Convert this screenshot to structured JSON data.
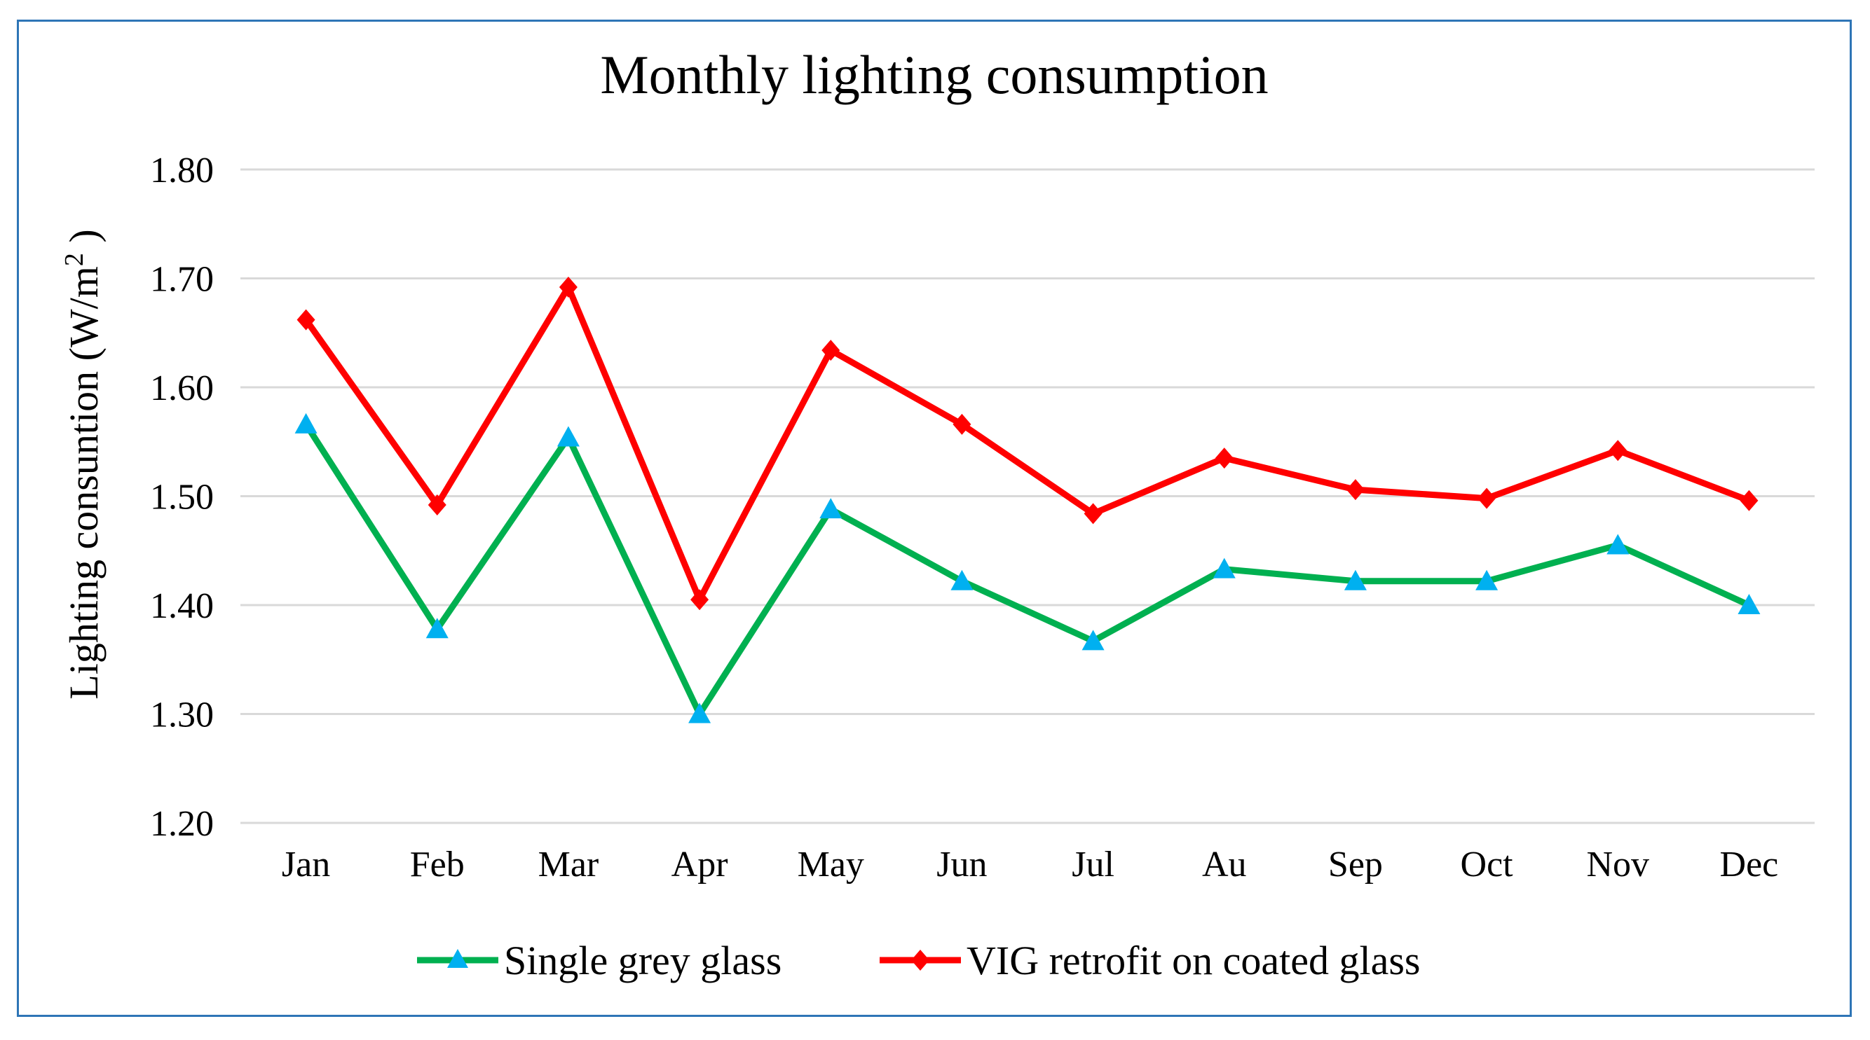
{
  "chart_data": {
    "type": "line",
    "title": "Monthly lighting consumption",
    "ylabel": "Lighting consuntion (W/m",
    "ylabel_superscript": "2",
    "ylabel_suffix": " )",
    "xlabel": "",
    "ylim": [
      1.2,
      1.8
    ],
    "ytick_values": [
      1.2,
      1.3,
      1.4,
      1.5,
      1.6,
      1.7,
      1.8
    ],
    "ytick_labels": [
      "1.20",
      "1.30",
      "1.40",
      "1.50",
      "1.60",
      "1.70",
      "1.80"
    ],
    "grid": true,
    "legend_position": "bottom",
    "categories": [
      "Jan",
      "Feb",
      "Mar",
      "Apr",
      "May",
      "Jun",
      "Jul",
      "Au",
      "Sep",
      "Oct",
      "Nov",
      "Dec"
    ],
    "series": [
      {
        "name": "Single grey glass",
        "color": "#00b050",
        "marker_color": "#00b0f0",
        "marker": "triangle",
        "values": [
          1.566,
          1.378,
          1.554,
          1.3,
          1.488,
          1.422,
          1.367,
          1.433,
          1.422,
          1.422,
          1.455,
          1.4
        ]
      },
      {
        "name": "VIG retrofit on coated glass",
        "color": "#ff0000",
        "marker_color": "#ff0000",
        "marker": "diamond",
        "values": [
          1.662,
          1.492,
          1.692,
          1.405,
          1.634,
          1.566,
          1.484,
          1.535,
          1.506,
          1.498,
          1.542,
          1.496
        ]
      }
    ]
  }
}
